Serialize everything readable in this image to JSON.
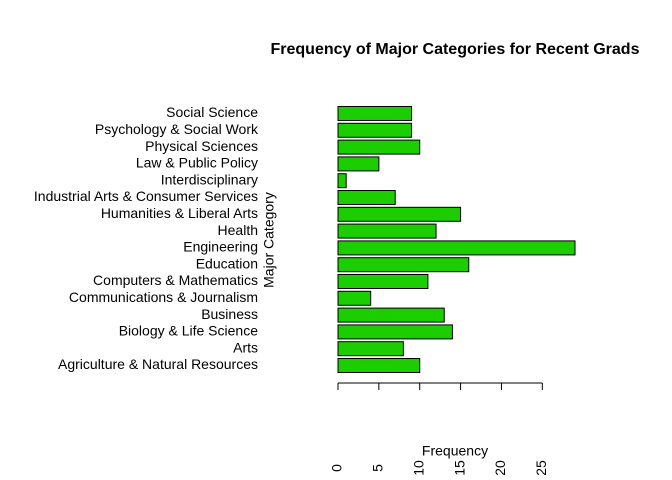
{
  "chart_data": {
    "type": "barh",
    "title": "Frequency of Major Categories for Recent Grads",
    "xlabel": "Frequency",
    "ylabel": "Major Category",
    "categories": [
      "Agriculture & Natural Resources",
      "Arts",
      "Biology & Life Science",
      "Business",
      "Communications & Journalism",
      "Computers & Mathematics",
      "Education",
      "Engineering",
      "Health",
      "Humanities & Liberal Arts",
      "Industrial Arts & Consumer Services",
      "Interdisciplinary",
      "Law & Public Policy",
      "Physical Sciences",
      "Psychology & Social Work",
      "Social Science"
    ],
    "values": [
      10,
      8,
      14,
      13,
      4,
      11,
      16,
      29,
      12,
      15,
      7,
      1,
      5,
      10,
      9,
      9
    ],
    "color": "#1ccd00",
    "xlim": [
      0,
      29
    ],
    "xticks": [
      0,
      5,
      10,
      15,
      20,
      25
    ]
  }
}
